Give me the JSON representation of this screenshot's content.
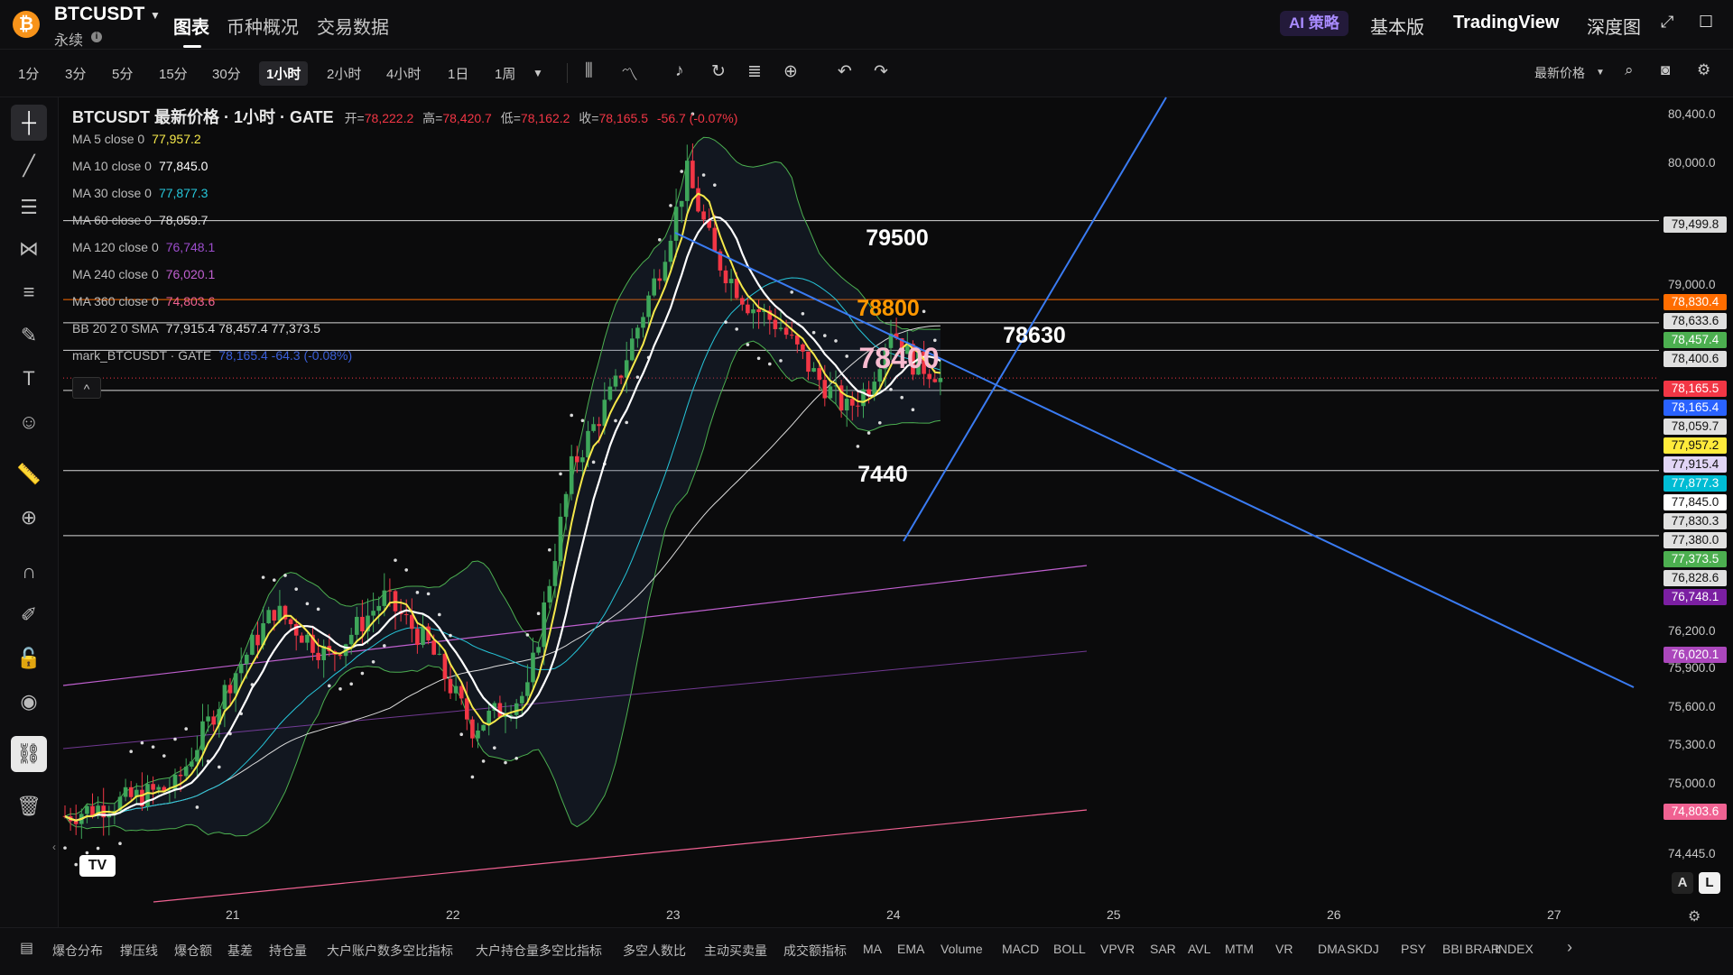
{
  "header": {
    "coin_glyph": "₿",
    "symbol": "BTCUSDT",
    "perpetual": "永续",
    "tabs": [
      "图表",
      "币种概况",
      "交易数据"
    ],
    "ai_label": "AI 策略",
    "right_links": [
      "基本版",
      "TradingView",
      "深度图"
    ]
  },
  "toolbar": {
    "timeframes": [
      "1分",
      "3分",
      "5分",
      "15分",
      "30分",
      "1小时",
      "2小时",
      "4小时",
      "1日",
      "1周"
    ],
    "active_timeframe": "1小时",
    "price_type": "最新价格"
  },
  "legend": {
    "title": "BTCUSDT 最新价格 · 1小时 · GATE",
    "open_label": "开=",
    "open": "78,222.2",
    "high_label": "高=",
    "high": "78,420.7",
    "low_label": "低=",
    "low": "78,162.2",
    "close_label": "收=",
    "close": "78,165.5",
    "change": "-56.7 (-0.07%)",
    "studies": [
      {
        "name": "MA 5 close 0",
        "value": "77,957.2",
        "color": "#f5e84a"
      },
      {
        "name": "MA 10 close 0",
        "value": "77,845.0",
        "color": "#ffffff"
      },
      {
        "name": "MA 30 close 0",
        "value": "77,877.3",
        "color": "#26c6da"
      },
      {
        "name": "MA 60 close 0",
        "value": "78,059.7",
        "color": "#dddddd"
      },
      {
        "name": "MA 120 close 0",
        "value": "76,748.1",
        "color": "#9c4dcc"
      },
      {
        "name": "MA 240 close 0",
        "value": "76,020.1",
        "color": "#c060d0"
      },
      {
        "name": "MA 360 close 0",
        "value": "74,803.6",
        "color": "#f06292"
      },
      {
        "name": "BB 20 2 0 SMA",
        "value": "77,915.4  78,457.4  77,373.5",
        "color": "#dddddd"
      },
      {
        "name": "mark_BTCUSDT · GATE",
        "value": "78,165.4  -64.3 (-0.08%)",
        "color": "#3a5fd9"
      }
    ],
    "collapse_glyph": "^"
  },
  "annotations": [
    "79500",
    "78800",
    "78400",
    "78630",
    "7440"
  ],
  "annotation_colors": [
    "#ffffff",
    "#ff9800",
    "#f8bbd0",
    "#ffffff",
    "#ffffff"
  ],
  "price_axis": {
    "ticks": [
      "80,400.0",
      "80,000.0",
      "79,000.0",
      "76,200.0",
      "75,900.0",
      "75,600.0",
      "75,300.0",
      "75,000.0",
      "74,445.0"
    ],
    "badges": [
      {
        "text": "79,499.8",
        "bg": "#dcdcdc",
        "fg": "#111"
      },
      {
        "text": "78,830.4",
        "bg": "#ff6d00",
        "fg": "#fff"
      },
      {
        "text": "78,633.6",
        "bg": "#e0e0e0",
        "fg": "#111"
      },
      {
        "text": "78,457.4",
        "bg": "#4caf50",
        "fg": "#fff"
      },
      {
        "text": "78,400.6",
        "bg": "#e0e0e0",
        "fg": "#111"
      },
      {
        "text": "78,165.5",
        "bg": "#f23645",
        "fg": "#fff"
      },
      {
        "text": "78,165.4",
        "bg": "#2962ff",
        "fg": "#fff"
      },
      {
        "text": "78,059.7",
        "bg": "#e0e0e0",
        "fg": "#111"
      },
      {
        "text": "77,957.2",
        "bg": "#ffeb3b",
        "fg": "#111"
      },
      {
        "text": "77,915.4",
        "bg": "#e1d5f5",
        "fg": "#111"
      },
      {
        "text": "77,877.3",
        "bg": "#00bcd4",
        "fg": "#fff"
      },
      {
        "text": "77,845.0",
        "bg": "#ffffff",
        "fg": "#111"
      },
      {
        "text": "77,830.3",
        "bg": "#e0e0e0",
        "fg": "#111"
      },
      {
        "text": "77,380.0",
        "bg": "#e0e0e0",
        "fg": "#111"
      },
      {
        "text": "77,373.5",
        "bg": "#4caf50",
        "fg": "#fff"
      },
      {
        "text": "76,828.6",
        "bg": "#e0e0e0",
        "fg": "#111"
      },
      {
        "text": "76,748.1",
        "bg": "#7b1fa2",
        "fg": "#fff"
      },
      {
        "text": "76,020.1",
        "bg": "#ab47bc",
        "fg": "#fff"
      },
      {
        "text": "74,803.6",
        "bg": "#f06292",
        "fg": "#fff"
      }
    ]
  },
  "time_axis": [
    "21",
    "22",
    "23",
    "24",
    "25",
    "26",
    "27"
  ],
  "scale_toggles": [
    "A",
    "L"
  ],
  "logo_mark": "TV",
  "indicators": [
    "爆仓分布",
    "撑压线",
    "爆仓额",
    "基差",
    "持仓量",
    "大户账户数多空比指标",
    "大户持仓量多空比指标",
    "多空人数比",
    "主动买卖量",
    "成交额指标",
    "MA",
    "EMA",
    "Volume",
    "MACD",
    "BOLL",
    "VPVR",
    "SAR",
    "AVL",
    "MTM",
    "VR",
    "DMA",
    "SKDJ",
    "PSY",
    "BBI",
    "BRAR",
    "INDEX"
  ],
  "colors": {
    "up": "#3ea65a",
    "down": "#f23645",
    "bg": "#0b0b0c"
  }
}
